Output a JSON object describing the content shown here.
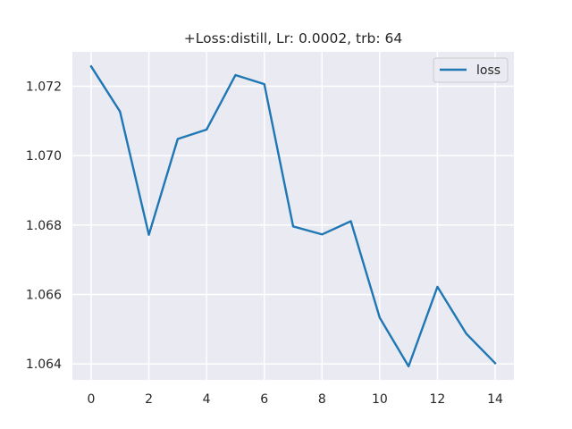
{
  "chart_data": {
    "type": "line",
    "title": "+Loss:distill, Lr: 0.0002, trb: 64",
    "xlabel": "",
    "ylabel": "",
    "x": [
      0,
      1,
      2,
      3,
      4,
      5,
      6,
      7,
      8,
      9,
      10,
      11,
      12,
      13,
      14
    ],
    "series": [
      {
        "name": "loss",
        "color": "#1f77b4",
        "values": [
          1.07257,
          1.07127,
          1.06772,
          1.07048,
          1.07075,
          1.07232,
          1.07206,
          1.06796,
          1.06773,
          1.06811,
          1.06533,
          1.06393,
          1.06622,
          1.06487,
          1.06402
        ]
      }
    ],
    "xlim": [
      -0.65,
      14.65
    ],
    "ylim": [
      1.06354,
      1.07299
    ],
    "xticks": [
      0,
      2,
      4,
      6,
      8,
      10,
      12,
      14
    ],
    "xtick_labels": [
      "0",
      "2",
      "4",
      "6",
      "8",
      "10",
      "12",
      "14"
    ],
    "yticks": [
      1.064,
      1.066,
      1.068,
      1.07,
      1.072
    ],
    "ytick_labels": [
      "1.064",
      "1.066",
      "1.068",
      "1.070",
      "1.072"
    ],
    "grid": true,
    "legend": "upper right",
    "background_color": "#eaeaf2",
    "grid_color": "#ffffff"
  }
}
